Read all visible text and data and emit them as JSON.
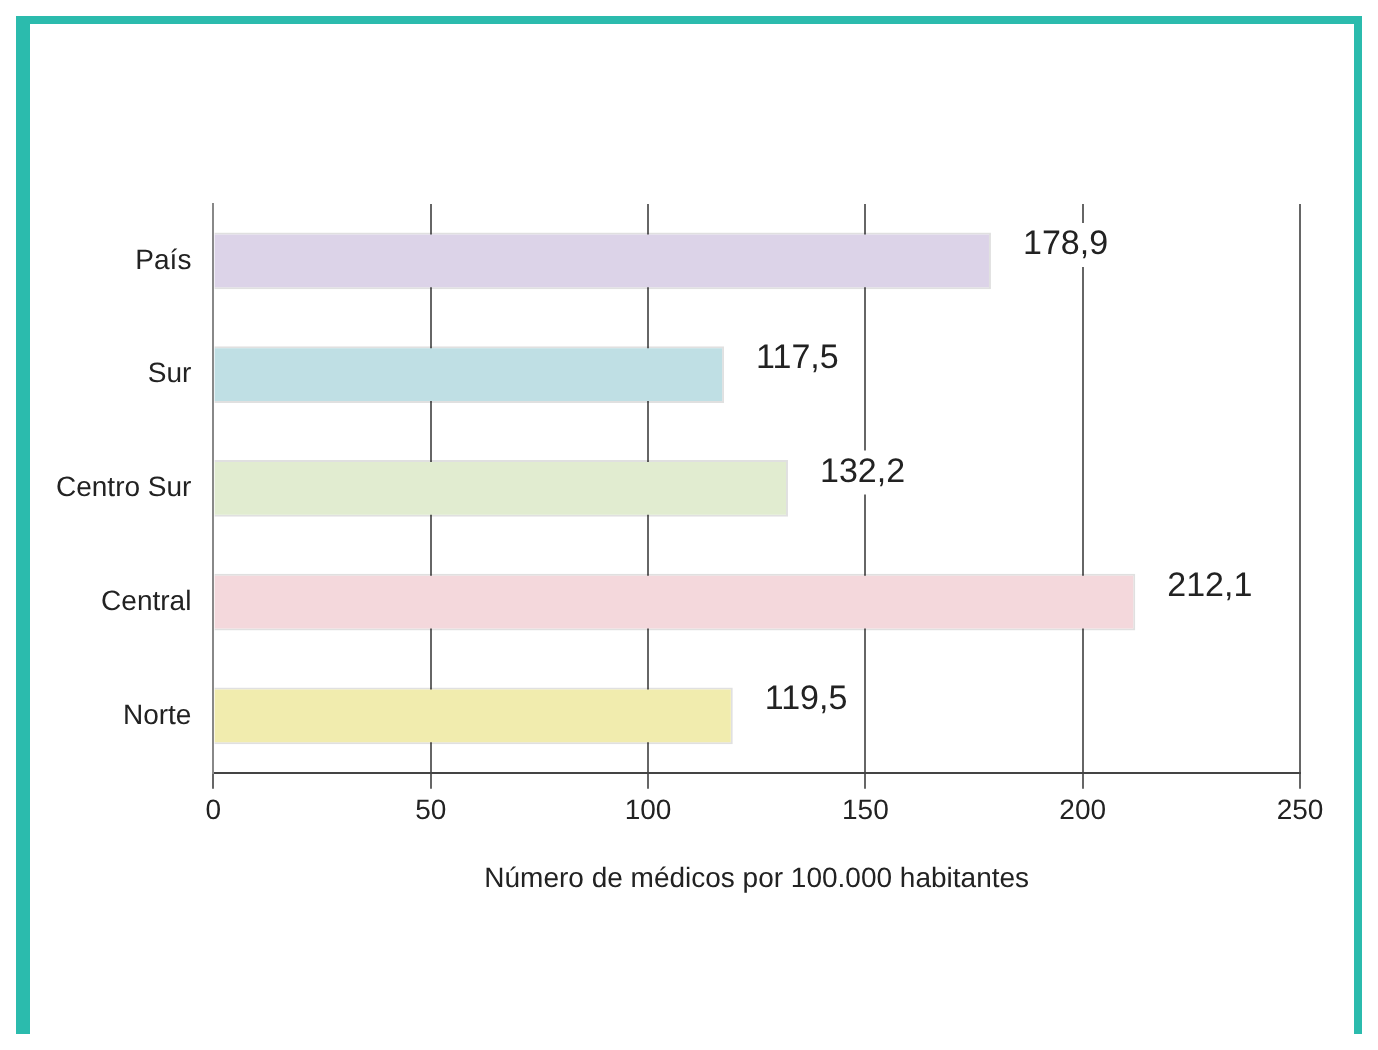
{
  "chart_data": {
    "type": "bar",
    "orientation": "horizontal",
    "xlabel": "Número de médicos por 100.000 habitantes",
    "categories": [
      "País",
      "Sur",
      "Centro Sur",
      "Central",
      "Norte"
    ],
    "values": [
      178.9,
      117.5,
      132.2,
      212.1,
      119.5
    ],
    "value_labels": [
      "178,9",
      "117,5",
      "132,2",
      "212,1",
      "119,5"
    ],
    "colors": [
      "#dcd3e8",
      "#bfdfe4",
      "#e1ecd0",
      "#f4d8dc",
      "#f1ecae"
    ],
    "xlim": [
      0,
      250
    ],
    "xticks": [
      0,
      50,
      100,
      150,
      200,
      250
    ],
    "grid": "x",
    "legend": false
  }
}
